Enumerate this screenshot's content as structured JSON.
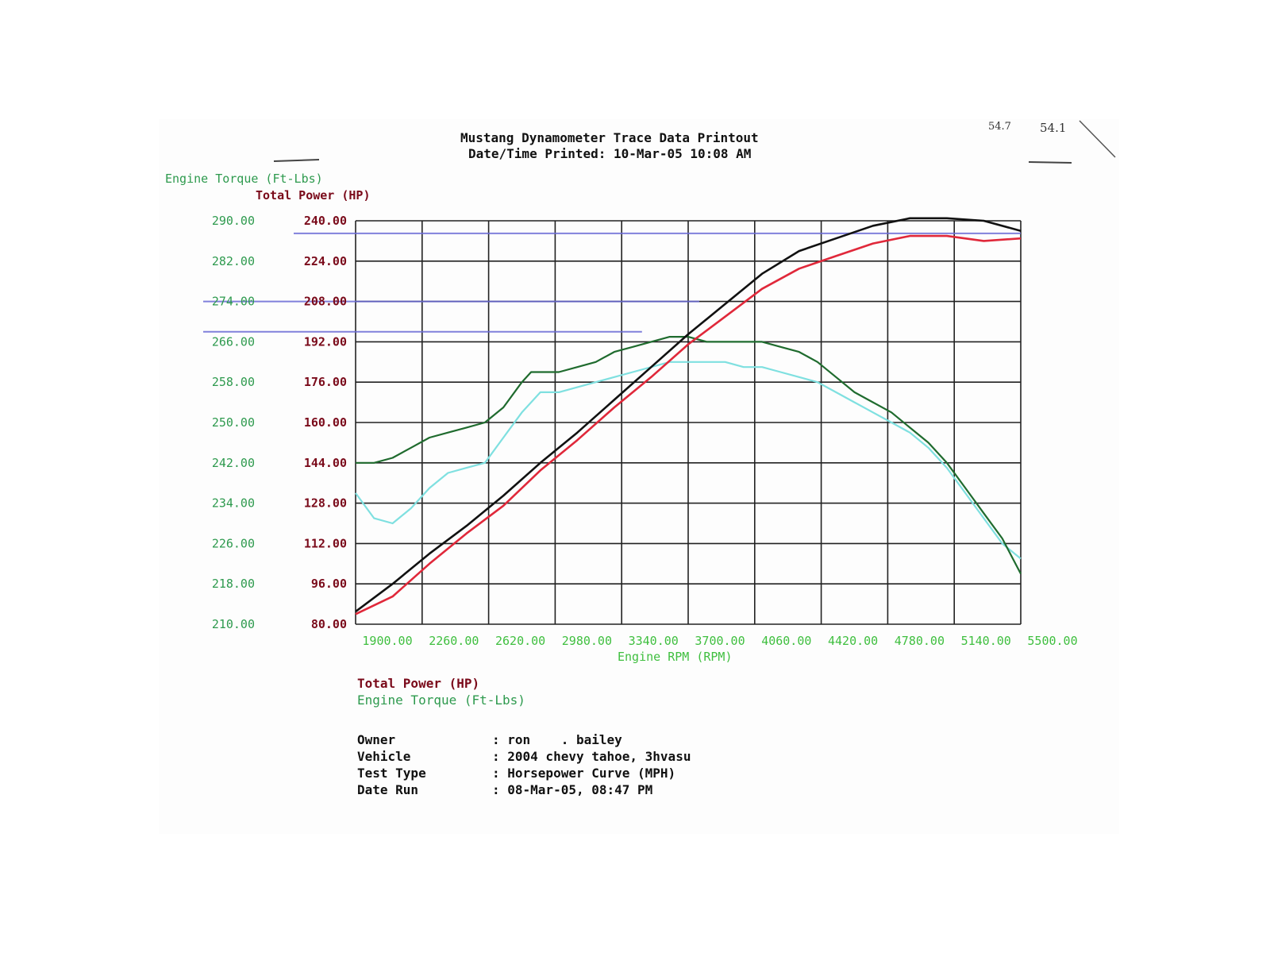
{
  "header": {
    "title": "Mustang Dynamometer Trace Data Printout",
    "printed": "Date/Time Printed: 10-Mar-05 10:08 AM",
    "handwritten_note_1": "54.7",
    "handwritten_note_2": "54.1"
  },
  "axes": {
    "torque_label": "Engine Torque (Ft-Lbs)",
    "power_label": "Total Power (HP)",
    "x_label": "Engine RPM (RPM)",
    "torque_ticks": [
      "290.00",
      "282.00",
      "274.00",
      "266.00",
      "258.00",
      "250.00",
      "242.00",
      "234.00",
      "226.00",
      "218.00",
      "210.00"
    ],
    "power_ticks": [
      "240.00",
      "224.00",
      "208.00",
      "192.00",
      "176.00",
      "160.00",
      "144.00",
      "128.00",
      "112.00",
      "96.00",
      "80.00"
    ],
    "x_ticks": [
      "1900.00",
      "2260.00",
      "2620.00",
      "2980.00",
      "3340.00",
      "3700.00",
      "4060.00",
      "4420.00",
      "4780.00",
      "5140.00",
      "5500.00"
    ]
  },
  "legend": {
    "power": "Total Power (HP)",
    "torque": "Engine Torque (Ft-Lbs)"
  },
  "info": {
    "owner_label": "Owner",
    "owner_value": ": ron    . bailey",
    "vehicle_label": "Vehicle",
    "vehicle_value": ": 2004 chevy tahoe, 3hvasu",
    "test_label": "Test Type",
    "test_value": ": Horsepower Curve (MPH)",
    "date_label": "Date Run",
    "date_value": ": 08-Mar-05, 08:47 PM"
  },
  "colors": {
    "power_after": "#111111",
    "power_before": "#e0283a",
    "torque_after": "#1f6b2e",
    "torque_before": "#7fe0e0",
    "grid": "#222222",
    "torque_tick": "#2e9a4e",
    "power_tick": "#7a0a1a",
    "x_tick": "#3fbf3f",
    "ref_line": "#6b6bd6"
  },
  "chart_data": {
    "type": "line",
    "xlabel": "Engine RPM (RPM)",
    "xlim": [
      1900,
      5500
    ],
    "y_left": {
      "label": "Engine Torque (Ft-Lbs)",
      "lim": [
        210,
        290
      ]
    },
    "y_right": {
      "label": "Total Power (HP)",
      "lim": [
        80,
        240
      ]
    },
    "reference_lines": [
      {
        "axis": "power",
        "value": 235,
        "from_rpm": 1900,
        "to_rpm": 5500
      },
      {
        "axis": "torque",
        "value": 274,
        "from_rpm": 1900,
        "to_rpm": 3760
      },
      {
        "axis": "torque",
        "value": 268,
        "from_rpm": 1900,
        "to_rpm": 3450
      }
    ],
    "series": [
      {
        "axis": "power",
        "color": "#111111",
        "x": [
          1900,
          2100,
          2300,
          2500,
          2700,
          2900,
          3100,
          3300,
          3500,
          3700,
          3900,
          4100,
          4300,
          4500,
          4700,
          4900,
          5100,
          5300,
          5500
        ],
        "y": [
          85,
          96,
          108,
          119,
          131,
          144,
          156,
          169,
          182,
          195,
          207,
          219,
          228,
          233,
          238,
          241,
          241,
          240,
          236
        ]
      },
      {
        "axis": "power",
        "color": "#e0283a",
        "x": [
          1900,
          2100,
          2300,
          2500,
          2700,
          2900,
          3100,
          3300,
          3500,
          3700,
          3900,
          4100,
          4300,
          4500,
          4700,
          4900,
          5100,
          5300,
          5500
        ],
        "y": [
          84,
          91,
          104,
          116,
          127,
          141,
          153,
          166,
          178,
          191,
          202,
          213,
          221,
          226,
          231,
          234,
          234,
          232,
          233
        ]
      },
      {
        "axis": "torque",
        "color": "#1f6b2e",
        "x": [
          1900,
          2000,
          2100,
          2200,
          2300,
          2400,
          2500,
          2600,
          2700,
          2800,
          2850,
          2900,
          3000,
          3100,
          3200,
          3300,
          3400,
          3500,
          3600,
          3700,
          3800,
          3900,
          4000,
          4100,
          4200,
          4300,
          4400,
          4500,
          4600,
          4700,
          4800,
          4900,
          5000,
          5100,
          5200,
          5300,
          5400,
          5500
        ],
        "y": [
          242,
          242,
          243,
          245,
          247,
          248,
          249,
          250,
          253,
          258,
          260,
          260,
          260,
          261,
          262,
          264,
          265,
          266,
          267,
          267,
          266,
          266,
          266,
          266,
          265,
          264,
          262,
          259,
          256,
          254,
          252,
          249,
          246,
          242,
          237,
          232,
          227,
          220
        ]
      },
      {
        "axis": "torque",
        "color": "#7fe0e0",
        "x": [
          1900,
          2000,
          2100,
          2200,
          2300,
          2400,
          2500,
          2600,
          2700,
          2800,
          2900,
          3000,
          3100,
          3200,
          3300,
          3400,
          3500,
          3600,
          3700,
          3800,
          3900,
          4000,
          4100,
          4200,
          4300,
          4400,
          4500,
          4600,
          4700,
          4800,
          4900,
          5000,
          5100,
          5200,
          5300,
          5400,
          5500
        ],
        "y": [
          236,
          231,
          230,
          233,
          237,
          240,
          241,
          242,
          247,
          252,
          256,
          256,
          257,
          258,
          259,
          260,
          261,
          262,
          262,
          262,
          262,
          261,
          261,
          260,
          259,
          258,
          256,
          254,
          252,
          250,
          248,
          245,
          241,
          236,
          231,
          226,
          223
        ]
      }
    ]
  }
}
